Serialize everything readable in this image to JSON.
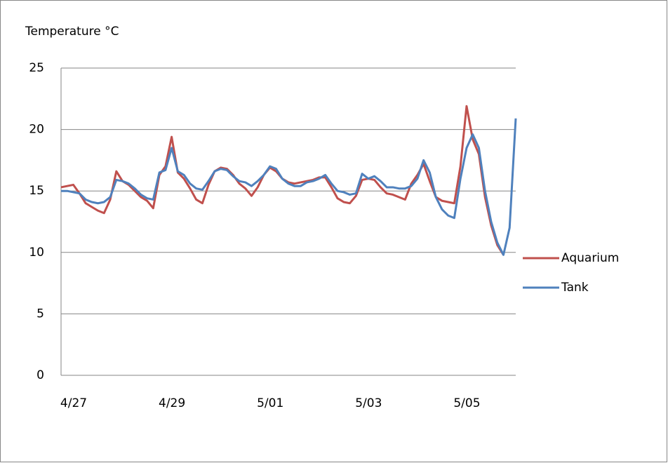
{
  "chart_data": {
    "type": "line",
    "title": "Temperature °C",
    "categories": [
      "4/27",
      null,
      null,
      null,
      null,
      null,
      null,
      null,
      null,
      null,
      null,
      null,
      null,
      null,
      null,
      null,
      "4/29",
      null,
      null,
      null,
      null,
      null,
      null,
      null,
      null,
      null,
      null,
      null,
      null,
      null,
      null,
      null,
      "5/01",
      null,
      null,
      null,
      null,
      null,
      null,
      null,
      null,
      null,
      null,
      null,
      null,
      null,
      null,
      null,
      "5/03",
      null,
      null,
      null,
      null,
      null,
      null,
      null,
      null,
      null,
      null,
      null,
      null,
      null,
      null,
      null,
      "5/05",
      null,
      null,
      null,
      null,
      null,
      null,
      null,
      null,
      null,
      null
    ],
    "series": [
      {
        "name": "Aquarium",
        "color": "#c0504d",
        "values": [
          15.3,
          15.4,
          15.5,
          14.8,
          14.0,
          13.7,
          13.4,
          13.2,
          14.3,
          16.6,
          15.8,
          15.5,
          15.0,
          14.5,
          14.2,
          13.6,
          16.3,
          17.0,
          19.4,
          16.5,
          16.0,
          15.2,
          14.3,
          14.0,
          15.5,
          16.6,
          16.9,
          16.8,
          16.3,
          15.6,
          15.2,
          14.6,
          15.3,
          16.3,
          16.9,
          16.6,
          16.0,
          15.7,
          15.6,
          15.7,
          15.8,
          15.9,
          16.1,
          16.1,
          15.3,
          14.4,
          14.1,
          14.0,
          14.6,
          15.9,
          16.0,
          15.9,
          15.3,
          14.8,
          14.7,
          14.5,
          14.3,
          15.6,
          16.3,
          17.2,
          15.8,
          14.5,
          14.2,
          14.1,
          14.0,
          17.0,
          21.9,
          19.2,
          18.0,
          14.5,
          12.2,
          10.6,
          9.8,
          null,
          null
        ]
      },
      {
        "name": "Tank",
        "color": "#4f81bd",
        "values": [
          15.0,
          15.0,
          14.9,
          14.8,
          14.3,
          14.1,
          14.0,
          14.1,
          14.5,
          15.9,
          15.8,
          15.6,
          15.2,
          14.7,
          14.4,
          14.3,
          16.5,
          16.7,
          18.5,
          16.6,
          16.3,
          15.6,
          15.2,
          15.1,
          15.8,
          16.6,
          16.8,
          16.7,
          16.2,
          15.8,
          15.7,
          15.4,
          15.8,
          16.3,
          17.0,
          16.8,
          16.0,
          15.6,
          15.4,
          15.4,
          15.7,
          15.8,
          16.0,
          16.3,
          15.6,
          15.0,
          14.9,
          14.7,
          14.8,
          16.4,
          16.0,
          16.2,
          15.8,
          15.3,
          15.3,
          15.2,
          15.2,
          15.4,
          16.0,
          17.5,
          16.5,
          14.5,
          13.5,
          13.0,
          12.8,
          16.0,
          18.5,
          19.6,
          18.5,
          15.0,
          12.5,
          10.8,
          9.8,
          12.0,
          20.9
        ]
      }
    ],
    "ylim": [
      0,
      25
    ],
    "yticks": [
      0,
      5,
      10,
      15,
      20,
      25
    ],
    "grid": true,
    "legend": "right"
  }
}
